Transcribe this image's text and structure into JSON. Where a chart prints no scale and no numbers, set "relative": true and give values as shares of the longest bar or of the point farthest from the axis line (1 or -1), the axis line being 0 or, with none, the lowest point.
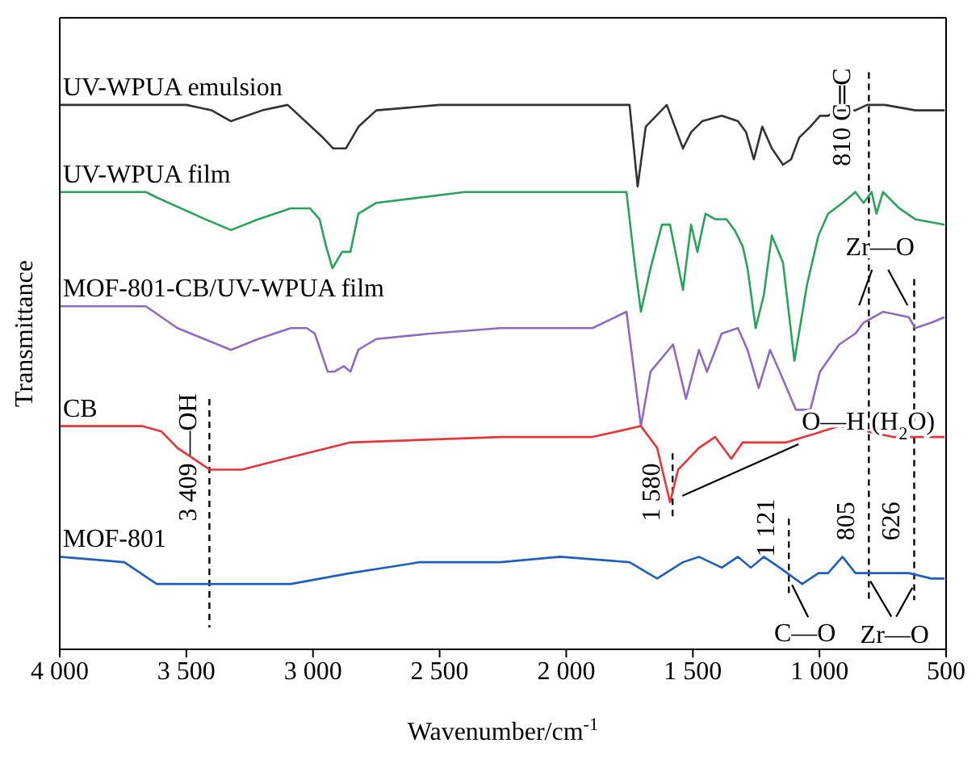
{
  "chart_data": {
    "type": "line",
    "relative": true,
    "xlabel": "Wavenumber/cm$^{-1}$",
    "ylabel": "Transmittance",
    "xlim": [
      4000,
      500
    ],
    "xticks": [
      {
        "value": 4000,
        "label": "4 000"
      },
      {
        "value": 3500,
        "label": "3 500"
      },
      {
        "value": 3000,
        "label": "3 000"
      },
      {
        "value": 2500,
        "label": "2 500"
      },
      {
        "value": 2000,
        "label": "2 000"
      },
      {
        "value": 1500,
        "label": "1 500"
      },
      {
        "value": 1000,
        "label": "1 000"
      },
      500
    ],
    "marker": "none",
    "line_style": "solid",
    "series": [
      {
        "name": "UV-WPUA emulsion",
        "color": "#333333",
        "x": [
          4000,
          3500,
          3400,
          3324,
          3200,
          3100,
          2961,
          2920,
          2870,
          2820,
          2750,
          2500,
          2000,
          1750,
          1718,
          1686,
          1603,
          1539,
          1507,
          1463,
          1386,
          1322,
          1290,
          1259,
          1226,
          1188,
          1144,
          1112,
          1080,
          1036,
          998,
          966,
          934,
          858,
          812,
          742,
          621,
          506
        ],
        "values": [
          1.0,
          1.0,
          0.99,
          0.97,
          0.99,
          1.0,
          0.94,
          0.92,
          0.92,
          0.96,
          0.99,
          1.0,
          1.0,
          1.0,
          0.85,
          0.96,
          1.0,
          0.92,
          0.95,
          0.97,
          0.98,
          0.97,
          0.95,
          0.9,
          0.96,
          0.92,
          0.89,
          0.9,
          0.94,
          0.96,
          0.98,
          0.98,
          0.99,
          0.99,
          1.0,
          1.0,
          0.99,
          0.99
        ]
      },
      {
        "name": "UV-WPUA film",
        "color": "#2aa35a",
        "x": [
          4000,
          3660,
          3617,
          3426,
          3324,
          3216,
          3088,
          3012,
          2974,
          2948,
          2923,
          2885,
          2852,
          2821,
          2750,
          2400,
          1762,
          1730,
          1705,
          1667,
          1622,
          1590,
          1539,
          1507,
          1482,
          1450,
          1412,
          1367,
          1335,
          1303,
          1284,
          1252,
          1220,
          1188,
          1144,
          1099,
          1049,
          1004,
          966,
          909,
          858,
          826,
          794,
          775,
          749,
          685,
          622,
          506
        ],
        "values": [
          0.84,
          0.84,
          0.83,
          0.79,
          0.77,
          0.79,
          0.81,
          0.81,
          0.79,
          0.74,
          0.7,
          0.73,
          0.73,
          0.8,
          0.82,
          0.84,
          0.84,
          0.71,
          0.62,
          0.7,
          0.78,
          0.78,
          0.66,
          0.78,
          0.73,
          0.8,
          0.79,
          0.79,
          0.77,
          0.74,
          0.7,
          0.59,
          0.65,
          0.76,
          0.71,
          0.53,
          0.67,
          0.76,
          0.8,
          0.82,
          0.84,
          0.82,
          0.84,
          0.8,
          0.84,
          0.81,
          0.79,
          0.78
        ]
      },
      {
        "name": "MOF-801-CB/UV-WPUA film",
        "color": "#8e6bbf",
        "x": [
          4000,
          3660,
          3535,
          3324,
          3216,
          3088,
          3025,
          2993,
          2942,
          2916,
          2878,
          2852,
          2821,
          2750,
          2534,
          2260,
          1896,
          1762,
          1705,
          1667,
          1578,
          1527,
          1476,
          1444,
          1386,
          1322,
          1284,
          1240,
          1195,
          1157,
          1093,
          1036,
          998,
          922,
          858,
          826,
          749,
          647,
          622,
          558,
          506
        ],
        "values": [
          0.63,
          0.63,
          0.59,
          0.55,
          0.57,
          0.59,
          0.59,
          0.58,
          0.51,
          0.51,
          0.52,
          0.51,
          0.55,
          0.57,
          0.58,
          0.59,
          0.59,
          0.62,
          0.41,
          0.51,
          0.56,
          0.46,
          0.55,
          0.51,
          0.58,
          0.59,
          0.55,
          0.48,
          0.55,
          0.51,
          0.44,
          0.44,
          0.51,
          0.56,
          0.58,
          0.6,
          0.62,
          0.61,
          0.59,
          0.6,
          0.61
        ]
      },
      {
        "name": "CB",
        "color": "#e8333a",
        "x": [
          4000,
          3675,
          3598,
          3535,
          3407,
          3280,
          3197,
          3025,
          2852,
          2260,
          1896,
          1705,
          1641,
          1590,
          1558,
          1476,
          1412,
          1348,
          1303,
          1131,
          922,
          812,
          710,
          622,
          506
        ],
        "values": [
          0.41,
          0.41,
          0.4,
          0.37,
          0.33,
          0.33,
          0.34,
          0.36,
          0.38,
          0.39,
          0.39,
          0.41,
          0.37,
          0.27,
          0.33,
          0.37,
          0.39,
          0.35,
          0.38,
          0.38,
          0.41,
          0.4,
          0.39,
          0.39,
          0.39
        ]
      },
      {
        "name": "MOF-801",
        "color": "#1f5fbf",
        "x": [
          4000,
          3745,
          3617,
          3407,
          3088,
          2852,
          2578,
          2387,
          2324,
          2260,
          2024,
          1750,
          1641,
          1539,
          1476,
          1386,
          1322,
          1271,
          1220,
          1157,
          1068,
          1004,
          966,
          909,
          858,
          794,
          647,
          558,
          506
        ],
        "values": [
          0.17,
          0.16,
          0.12,
          0.12,
          0.12,
          0.14,
          0.16,
          0.16,
          0.16,
          0.16,
          0.17,
          0.16,
          0.13,
          0.16,
          0.17,
          0.15,
          0.17,
          0.15,
          0.17,
          0.15,
          0.12,
          0.14,
          0.14,
          0.17,
          0.14,
          0.14,
          0.14,
          0.13,
          0.13
        ]
      }
    ],
    "ref_lines": [
      {
        "axis": "x",
        "value": 3409,
        "label": "3 409 —OH",
        "line_style": "dashed",
        "color": "#000000"
      },
      {
        "axis": "x",
        "value": 1580,
        "label": "1 580",
        "line_style": "dashed",
        "color": "#000000"
      },
      {
        "axis": "x",
        "value": 1121,
        "label": "1 121",
        "line_style": "dashed",
        "color": "#000000"
      },
      {
        "axis": "x",
        "value": 805,
        "label": "805",
        "line_style": "dashed",
        "color": "#000000"
      },
      {
        "axis": "x",
        "value": 626,
        "label": "626",
        "line_style": "dashed",
        "color": "#000000"
      }
    ],
    "annotations": [
      {
        "text": "810 C═C",
        "x": 810,
        "y": 1.0
      },
      {
        "text": "Zr—O",
        "x": 716,
        "y": 0.62
      },
      {
        "text": "O—H (H$_{2}$O)",
        "x": 1580,
        "y": 0.27
      },
      {
        "text": "C—O",
        "x": 1121,
        "y": 0.13
      },
      {
        "text": "Zr—O",
        "x": 716,
        "y": 0.14
      }
    ]
  }
}
